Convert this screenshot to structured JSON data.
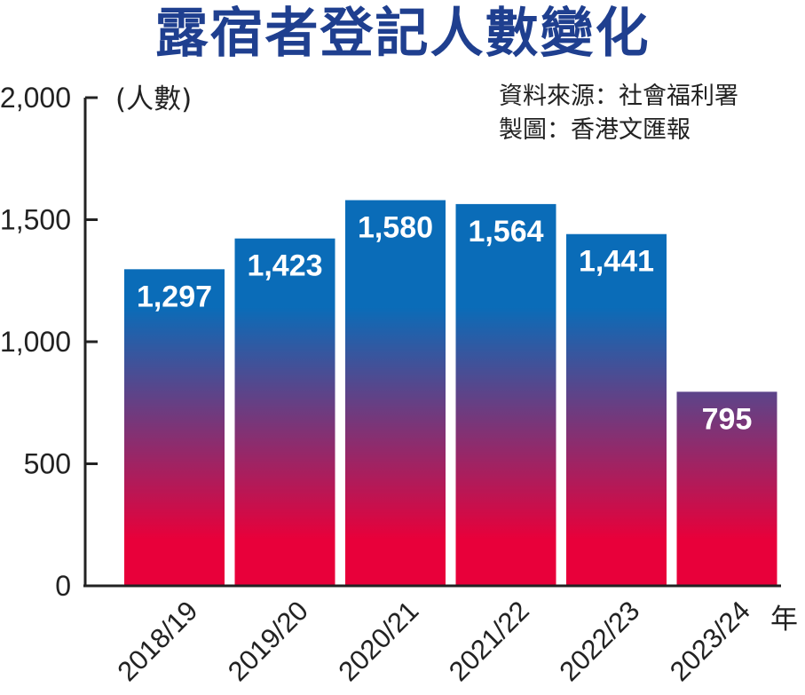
{
  "colors": {
    "title": "#1f3f8f",
    "text": "#222222",
    "bar_top": "#0a6cb8",
    "bar_bottom": "#e8003a",
    "bar_label": "#ffffff"
  },
  "source": {
    "data_source": "資料來源：社會福利署",
    "made_by": "製圖：香港文匯報"
  },
  "chart_data": {
    "type": "bar",
    "title": "露宿者登記人數變化",
    "ylabel": "(人數)",
    "xlabel": "年",
    "categories": [
      "2018/19",
      "2019/20",
      "2020/21",
      "2021/22",
      "2022/23",
      "2023/24"
    ],
    "values": [
      1297,
      1423,
      1580,
      1564,
      1441,
      795
    ],
    "value_labels": [
      "1,297",
      "1,423",
      "1,580",
      "1,564",
      "1,441",
      "795"
    ],
    "ylim": [
      0,
      2000
    ],
    "yticks": [
      0,
      500,
      1000,
      1500,
      2000
    ],
    "ytick_labels": [
      "0",
      "500",
      "1,000",
      "1,500",
      "2,000"
    ],
    "grid": false,
    "legend": "none"
  }
}
